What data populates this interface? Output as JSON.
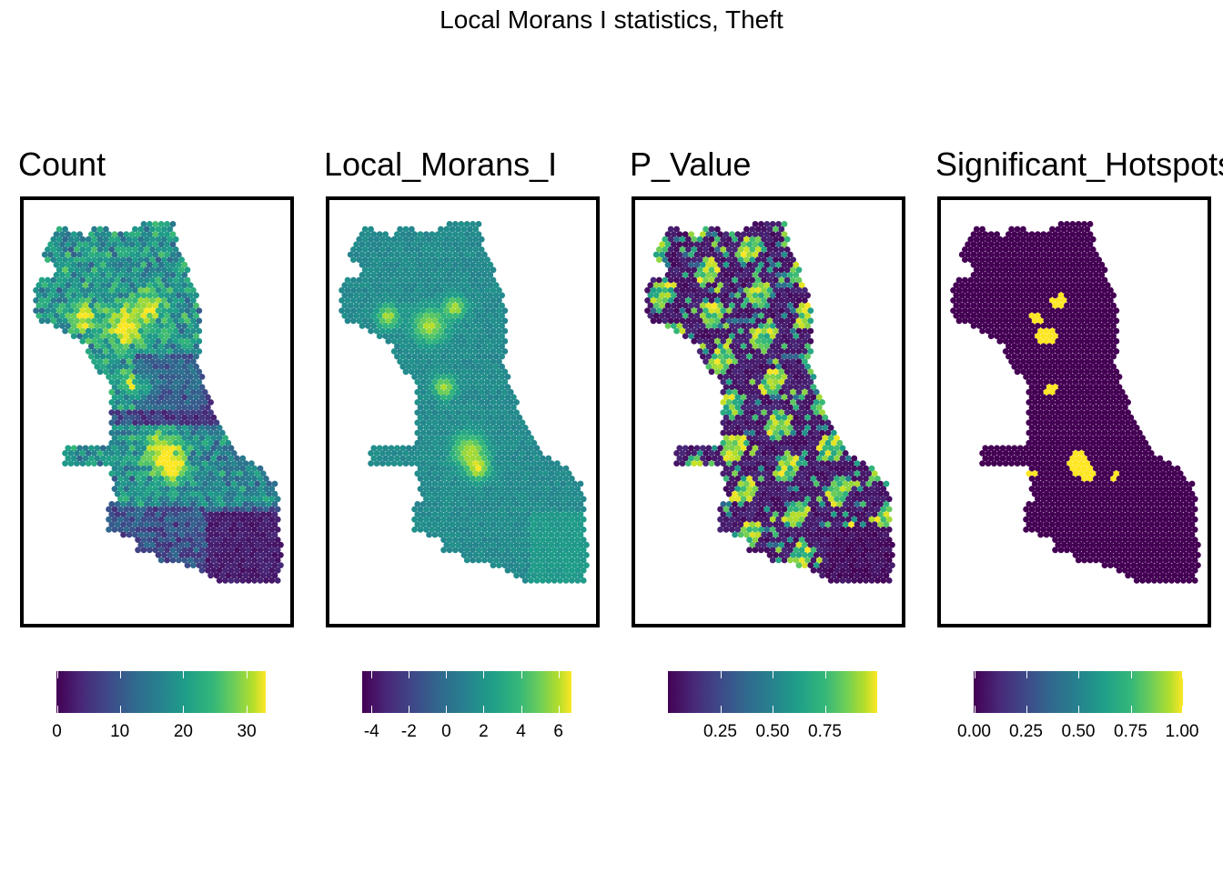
{
  "title": "Local Morans I statistics, Theft",
  "colors": {
    "viridis": [
      "#440154",
      "#482878",
      "#3e4a89",
      "#31688e",
      "#26828e",
      "#1f9e89",
      "#35b779",
      "#6ece58",
      "#b5de2b",
      "#fde725"
    ],
    "frame": "#000000"
  },
  "panels": [
    {
      "title": "Count",
      "legend": {
        "min": 0,
        "max": 33,
        "ticks": [
          0,
          10,
          20,
          30
        ],
        "labels": [
          "0",
          "10",
          "20",
          "30"
        ]
      }
    },
    {
      "title": "Local_Morans_I",
      "legend": {
        "min": -4.5,
        "max": 6.7,
        "ticks": [
          -4,
          -2,
          0,
          2,
          4,
          6
        ],
        "labels": [
          "-4",
          "-2",
          "0",
          "2",
          "4",
          "6"
        ]
      }
    },
    {
      "title": "P_Value",
      "legend": {
        "min": 0.0,
        "max": 1.0,
        "ticks": [
          0.25,
          0.5,
          0.75
        ],
        "labels": [
          "0.25",
          "0.50",
          "0.75"
        ]
      }
    },
    {
      "title": "Significant_Hotspots",
      "legend": {
        "min": 0.0,
        "max": 1.0,
        "ticks": [
          0.0,
          0.25,
          0.5,
          0.75,
          1.0
        ],
        "labels": [
          "0.00",
          "0.25",
          "0.50",
          "0.75",
          "1.00"
        ]
      }
    }
  ]
}
